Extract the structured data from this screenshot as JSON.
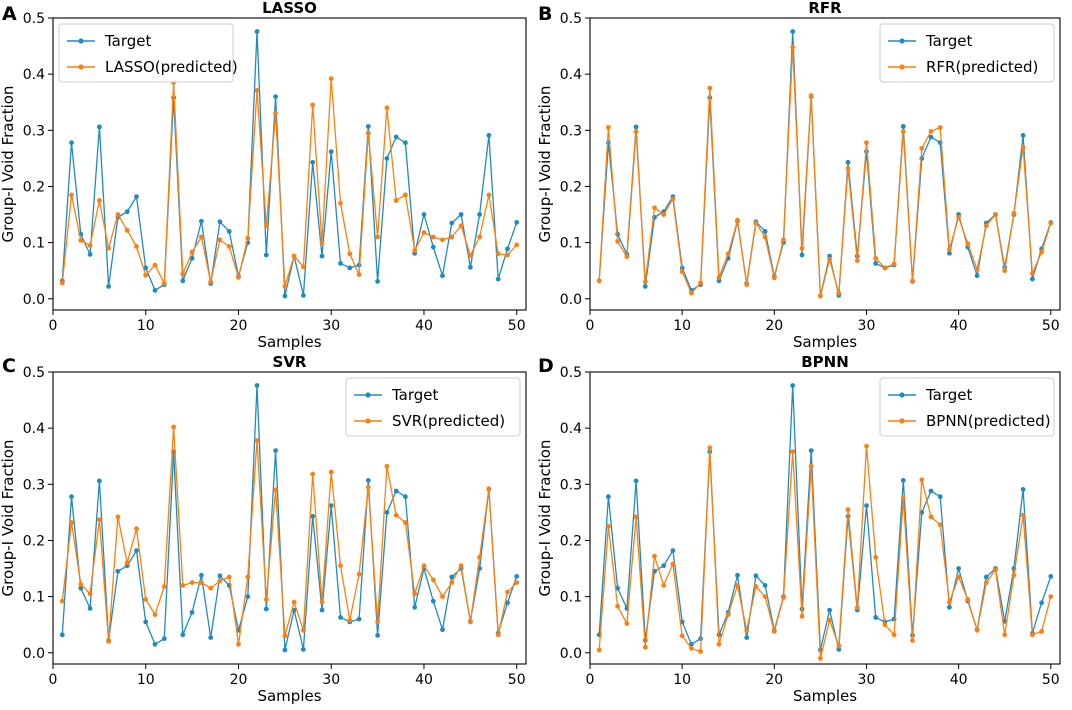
{
  "chart_data": [
    {
      "panel": "A",
      "title": "LASSO",
      "type": "line",
      "xlabel": "Samples",
      "ylabel": "Group-I Void Fraction",
      "xlim": [
        0,
        51
      ],
      "ylim": [
        -0.02,
        0.5
      ],
      "xticks": [
        0,
        10,
        20,
        30,
        40,
        50
      ],
      "yticks": [
        0.0,
        0.1,
        0.2,
        0.3,
        0.4,
        0.5
      ],
      "legend_position": "top-left",
      "series": [
        {
          "name": "Target",
          "color": "#1f8bc0",
          "values": [
            0.032,
            0.278,
            0.115,
            0.079,
            0.306,
            0.022,
            0.145,
            0.155,
            0.182,
            0.055,
            0.015,
            0.025,
            0.358,
            0.032,
            0.072,
            0.138,
            0.027,
            0.137,
            0.12,
            0.04,
            0.1,
            0.476,
            0.078,
            0.36,
            0.005,
            0.076,
            0.006,
            0.243,
            0.076,
            0.262,
            0.063,
            0.055,
            0.06,
            0.307,
            0.031,
            0.25,
            0.288,
            0.278,
            0.081,
            0.15,
            0.092,
            0.041,
            0.135,
            0.15,
            0.056,
            0.15,
            0.291,
            0.035,
            0.089,
            0.136
          ]
        },
        {
          "name": "LASSO(predicted)",
          "color": "#ff7f0e",
          "values": [
            0.028,
            0.185,
            0.104,
            0.095,
            0.175,
            0.09,
            0.15,
            0.122,
            0.093,
            0.042,
            0.06,
            0.027,
            0.385,
            0.044,
            0.083,
            0.11,
            0.03,
            0.105,
            0.093,
            0.038,
            0.108,
            0.371,
            0.13,
            0.33,
            0.022,
            0.076,
            0.057,
            0.345,
            0.1,
            0.392,
            0.17,
            0.08,
            0.043,
            0.295,
            0.11,
            0.34,
            0.175,
            0.185,
            0.086,
            0.118,
            0.11,
            0.105,
            0.11,
            0.13,
            0.077,
            0.11,
            0.185,
            0.08,
            0.078,
            0.096
          ]
        }
      ]
    },
    {
      "panel": "B",
      "title": "RFR",
      "type": "line",
      "xlabel": "Samples",
      "ylabel": "Group-I Void Fraction",
      "xlim": [
        0,
        51
      ],
      "ylim": [
        -0.02,
        0.5
      ],
      "xticks": [
        0,
        10,
        20,
        30,
        40,
        50
      ],
      "yticks": [
        0.0,
        0.1,
        0.2,
        0.3,
        0.4,
        0.5
      ],
      "legend_position": "top-right",
      "series": [
        {
          "name": "Target",
          "color": "#1f8bc0",
          "values": [
            0.032,
            0.278,
            0.115,
            0.079,
            0.306,
            0.022,
            0.145,
            0.155,
            0.182,
            0.055,
            0.015,
            0.025,
            0.358,
            0.032,
            0.072,
            0.138,
            0.027,
            0.137,
            0.12,
            0.04,
            0.1,
            0.476,
            0.078,
            0.36,
            0.005,
            0.076,
            0.006,
            0.243,
            0.076,
            0.262,
            0.063,
            0.055,
            0.06,
            0.307,
            0.031,
            0.25,
            0.288,
            0.278,
            0.081,
            0.15,
            0.092,
            0.041,
            0.135,
            0.15,
            0.056,
            0.15,
            0.291,
            0.035,
            0.089,
            0.136
          ]
        },
        {
          "name": "RFR(predicted)",
          "color": "#ff7f0e",
          "values": [
            0.032,
            0.305,
            0.102,
            0.075,
            0.298,
            0.03,
            0.162,
            0.15,
            0.178,
            0.048,
            0.01,
            0.028,
            0.375,
            0.038,
            0.08,
            0.14,
            0.025,
            0.135,
            0.11,
            0.037,
            0.105,
            0.448,
            0.09,
            0.362,
            0.005,
            0.07,
            0.01,
            0.232,
            0.068,
            0.278,
            0.072,
            0.055,
            0.062,
            0.298,
            0.032,
            0.268,
            0.298,
            0.305,
            0.088,
            0.145,
            0.098,
            0.052,
            0.13,
            0.15,
            0.05,
            0.152,
            0.27,
            0.045,
            0.083,
            0.135
          ]
        }
      ]
    },
    {
      "panel": "C",
      "title": "SVR",
      "type": "line",
      "xlabel": "Samples",
      "ylabel": "Group-I Void Fraction",
      "xlim": [
        0,
        51
      ],
      "ylim": [
        -0.02,
        0.5
      ],
      "xticks": [
        0,
        10,
        20,
        30,
        40,
        50
      ],
      "yticks": [
        0.0,
        0.1,
        0.2,
        0.3,
        0.4,
        0.5
      ],
      "legend_position": "top-right",
      "series": [
        {
          "name": "Target",
          "color": "#1f8bc0",
          "values": [
            0.032,
            0.278,
            0.115,
            0.079,
            0.306,
            0.022,
            0.145,
            0.155,
            0.182,
            0.055,
            0.015,
            0.025,
            0.358,
            0.032,
            0.072,
            0.138,
            0.027,
            0.137,
            0.12,
            0.04,
            0.1,
            0.476,
            0.078,
            0.36,
            0.005,
            0.076,
            0.006,
            0.243,
            0.076,
            0.262,
            0.063,
            0.055,
            0.06,
            0.307,
            0.031,
            0.25,
            0.288,
            0.278,
            0.081,
            0.15,
            0.092,
            0.041,
            0.135,
            0.15,
            0.056,
            0.15,
            0.291,
            0.035,
            0.089,
            0.136
          ]
        },
        {
          "name": "SVR(predicted)",
          "color": "#ff7f0e",
          "values": [
            0.092,
            0.232,
            0.122,
            0.105,
            0.237,
            0.02,
            0.242,
            0.16,
            0.221,
            0.095,
            0.068,
            0.118,
            0.402,
            0.12,
            0.125,
            0.125,
            0.115,
            0.128,
            0.135,
            0.015,
            0.135,
            0.378,
            0.095,
            0.29,
            0.03,
            0.09,
            0.04,
            0.318,
            0.09,
            0.322,
            0.155,
            0.058,
            0.14,
            0.295,
            0.055,
            0.332,
            0.245,
            0.232,
            0.105,
            0.155,
            0.13,
            0.1,
            0.125,
            0.155,
            0.055,
            0.17,
            0.292,
            0.032,
            0.108,
            0.125
          ]
        }
      ]
    },
    {
      "panel": "D",
      "title": "BPNN",
      "type": "line",
      "xlabel": "Samples",
      "ylabel": "Group-I Void Fraction",
      "xlim": [
        0,
        51
      ],
      "ylim": [
        -0.02,
        0.5
      ],
      "xticks": [
        0,
        10,
        20,
        30,
        40,
        50
      ],
      "yticks": [
        0.0,
        0.1,
        0.2,
        0.3,
        0.4,
        0.5
      ],
      "legend_position": "top-right",
      "series": [
        {
          "name": "Target",
          "color": "#1f8bc0",
          "values": [
            0.032,
            0.278,
            0.115,
            0.079,
            0.306,
            0.022,
            0.145,
            0.155,
            0.182,
            0.055,
            0.015,
            0.025,
            0.358,
            0.032,
            0.072,
            0.138,
            0.027,
            0.137,
            0.12,
            0.04,
            0.1,
            0.476,
            0.078,
            0.36,
            0.005,
            0.076,
            0.006,
            0.243,
            0.076,
            0.262,
            0.063,
            0.055,
            0.06,
            0.307,
            0.031,
            0.25,
            0.288,
            0.278,
            0.081,
            0.15,
            0.092,
            0.041,
            0.135,
            0.15,
            0.056,
            0.15,
            0.291,
            0.035,
            0.089,
            0.136
          ]
        },
        {
          "name": "BPNN(predicted)",
          "color": "#ff7f0e",
          "values": [
            0.005,
            0.225,
            0.083,
            0.052,
            0.242,
            0.01,
            0.172,
            0.12,
            0.158,
            0.03,
            0.008,
            0.002,
            0.365,
            0.015,
            0.068,
            0.12,
            0.04,
            0.118,
            0.1,
            0.038,
            0.098,
            0.358,
            0.065,
            0.332,
            -0.01,
            0.058,
            0.012,
            0.255,
            0.08,
            0.368,
            0.17,
            0.05,
            0.032,
            0.275,
            0.022,
            0.308,
            0.242,
            0.228,
            0.09,
            0.135,
            0.095,
            0.04,
            0.125,
            0.148,
            0.032,
            0.138,
            0.245,
            0.032,
            0.038,
            0.1
          ]
        }
      ]
    }
  ]
}
